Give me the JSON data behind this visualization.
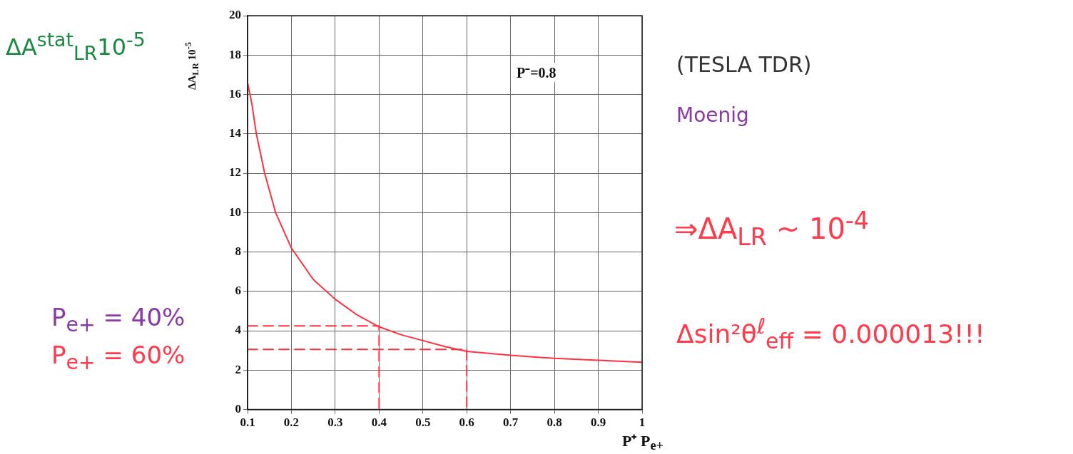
{
  "chart_data": {
    "type": "line",
    "xlabel": "P⁺ P$_{e+}$",
    "ylabel": "ΔA$_{LR}$ 10$^{-5}$",
    "xlim": [
      0.1,
      1
    ],
    "xticks": [
      0.1,
      0.2,
      0.3,
      0.4,
      0.5,
      0.6,
      0.7,
      0.8,
      0.9,
      1
    ],
    "ylim": [
      0,
      20
    ],
    "yticks": [
      0,
      2,
      4,
      6,
      8,
      10,
      12,
      14,
      16,
      18,
      20
    ],
    "grid": true,
    "legend": false,
    "marker": "none",
    "series": [
      {
        "color": "#ff3040",
        "line_style": "solid",
        "x": [
          0.1,
          0.11,
          0.12,
          0.139,
          0.164,
          0.2,
          0.25,
          0.3,
          0.35,
          0.4,
          0.45,
          0.5,
          0.55,
          0.6,
          0.7,
          0.8,
          0.9,
          1
        ],
        "values": [
          16.6,
          15.5,
          14,
          12,
          10,
          8.2,
          6.6,
          5.6,
          4.8,
          4.2,
          3.8,
          3.5,
          3.2,
          2.95,
          2.75,
          2.6,
          2.5,
          2.4
        ]
      },
      {
        "color": "#ff3040",
        "line_style": "dashed",
        "x": [
          0.1,
          0.4,
          0.4
        ],
        "values": [
          4.25,
          4.25,
          0
        ]
      },
      {
        "color": "#ff3040",
        "line_style": "dashed",
        "x": [
          0.1,
          0.6,
          0.6
        ],
        "values": [
          3.05,
          3.05,
          0
        ]
      }
    ],
    "annotations": [
      "P⁻=0.8",
      "ΔA$^{stat}$$_{LR}$10$^{-5}$",
      "P$_{e+}$ = 40%",
      "P$_{e+}$ = 60%",
      "(TESLA TDR)",
      "Moenig",
      "⇒ΔA$_{LR}$ ~ 10$^{-4}$",
      "Δsin²θ$^{ℓ}$$_{eff}$ = 0.000013!!!"
    ]
  }
}
